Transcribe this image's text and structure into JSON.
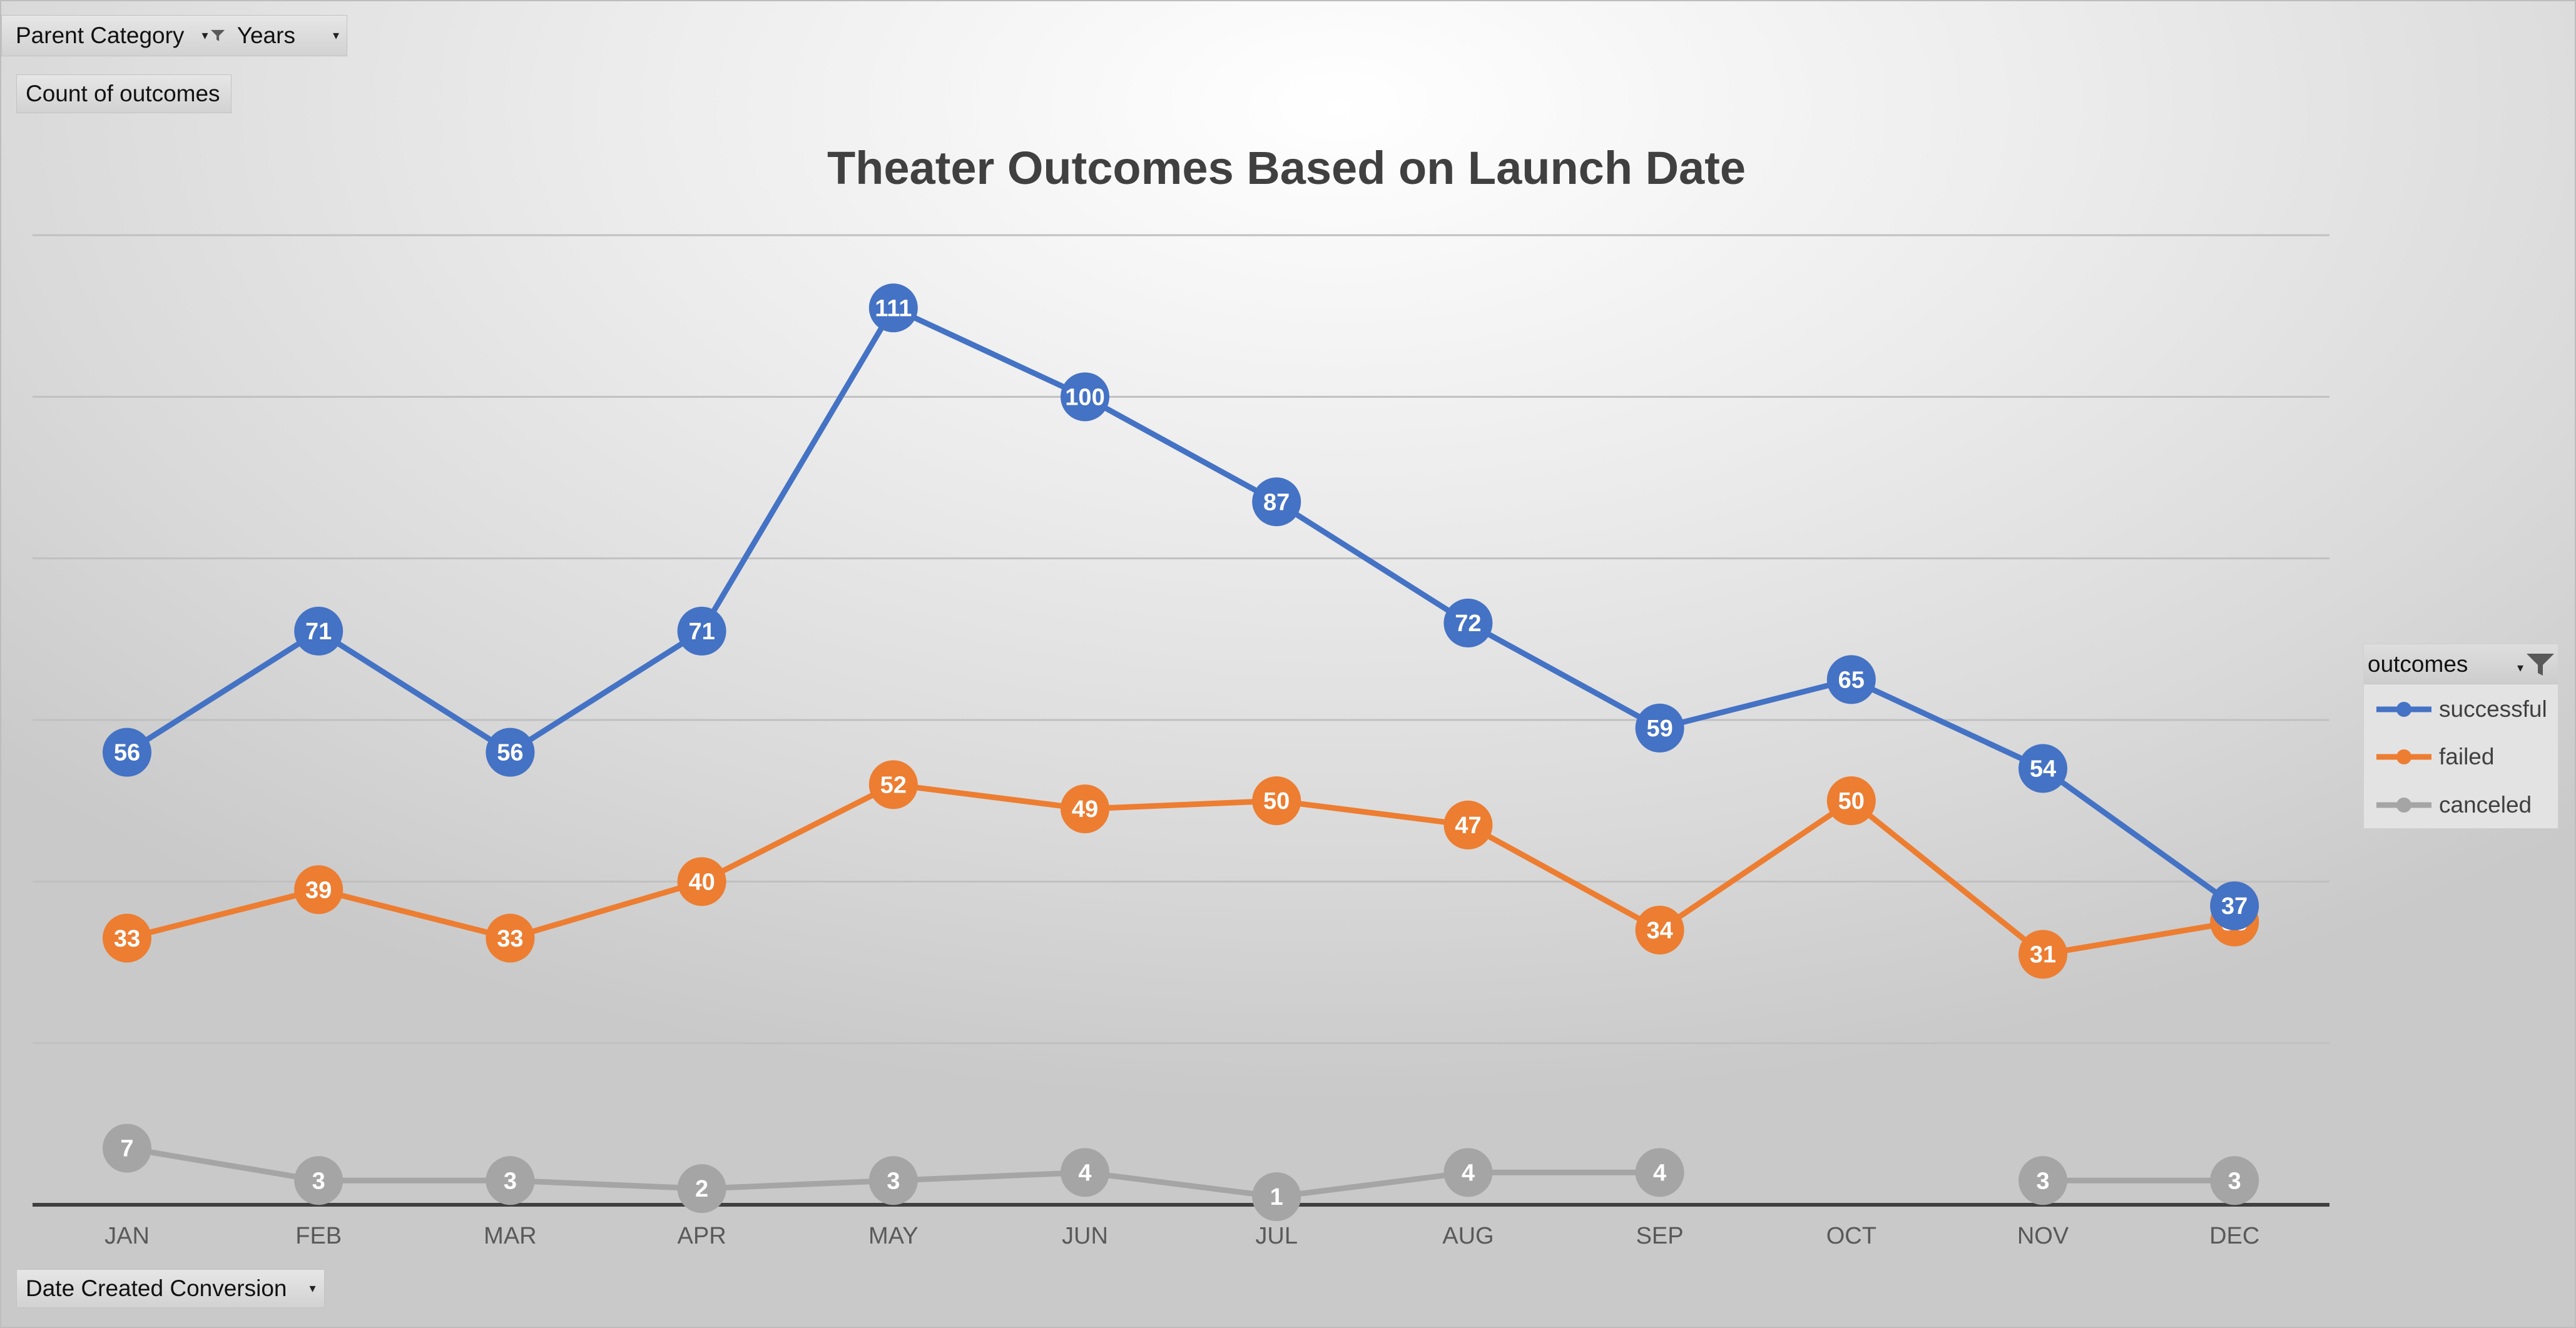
{
  "pivot": {
    "filter1_label": "Parent Category",
    "filter2_label": "Years",
    "values_field": "Count of outcomes",
    "axis_field": "Date Created Conversion",
    "legend_field": "outcomes"
  },
  "colors": {
    "successful": "#4472C4",
    "failed": "#ED7D31",
    "canceled": "#A5A5A5"
  },
  "icons": {
    "filter": "funnel-icon",
    "dropdown": "dropdown-arrow-icon"
  },
  "chart_data": {
    "type": "line",
    "title": "Theater Outcomes Based on Launch Date",
    "xlabel": "",
    "ylabel": "",
    "categories": [
      "JAN",
      "FEB",
      "MAR",
      "APR",
      "MAY",
      "JUN",
      "JUL",
      "AUG",
      "SEP",
      "OCT",
      "NOV",
      "DEC"
    ],
    "ylim": [
      0,
      120
    ],
    "y_gridline_step": 20,
    "y_tick_labels_shown": false,
    "grid": true,
    "data_labels": true,
    "legend_position": "right",
    "series": [
      {
        "name": "successful",
        "values": [
          56,
          71,
          56,
          71,
          111,
          100,
          87,
          72,
          59,
          65,
          54,
          37
        ]
      },
      {
        "name": "failed",
        "values": [
          33,
          39,
          33,
          40,
          52,
          49,
          50,
          47,
          34,
          50,
          31,
          35
        ]
      },
      {
        "name": "canceled",
        "values": [
          7,
          3,
          3,
          2,
          3,
          4,
          1,
          4,
          4,
          null,
          3,
          3
        ]
      }
    ]
  }
}
